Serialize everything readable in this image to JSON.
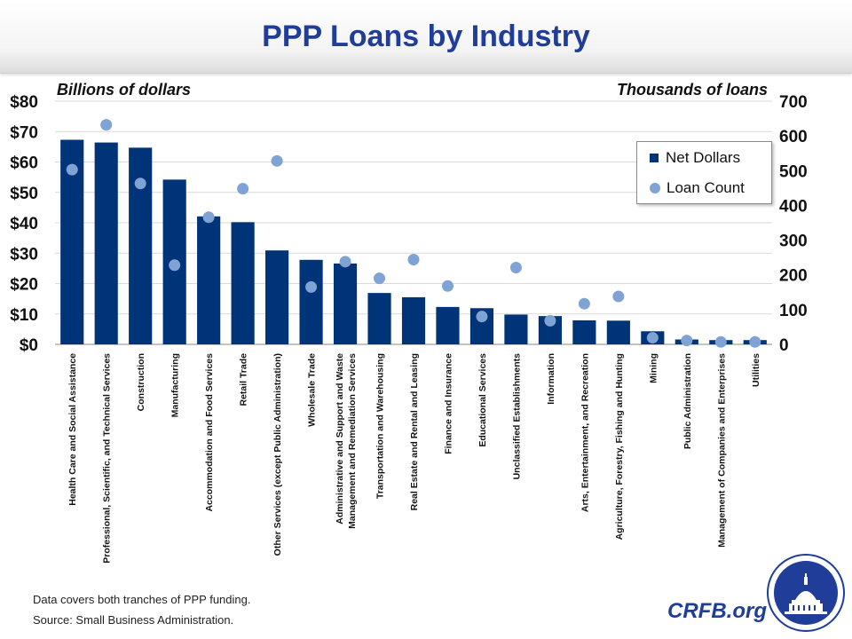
{
  "header": {
    "title": "PPP Loans by Industry"
  },
  "axes": {
    "left_title": "Billions of dollars",
    "right_title": "Thousands of loans"
  },
  "legend": {
    "bar_label": "Net Dollars",
    "dot_label": "Loan Count"
  },
  "footer": {
    "note": "Data covers both tranches of PPP funding.",
    "source": "Source: Small Business Administration.",
    "brand": "CRFB.org"
  },
  "colors": {
    "bar": "#003478",
    "dot": "#7fa3d4",
    "title": "#1f3d99"
  },
  "chart_data": {
    "type": "bar",
    "title": "PPP Loans by Industry",
    "ylabel": "Billions of dollars",
    "y2label": "Thousands of loans",
    "ylim": [
      0,
      80
    ],
    "y2lim": [
      0,
      700
    ],
    "yticks": [
      "$0",
      "$10",
      "$20",
      "$30",
      "$40",
      "$50",
      "$60",
      "$70",
      "$80"
    ],
    "y2ticks": [
      "0",
      "100",
      "200",
      "300",
      "400",
      "500",
      "600",
      "700"
    ],
    "grid": true,
    "legend_position": "top-right",
    "categories": [
      [
        "Health Care and Social Assistance"
      ],
      [
        "Professional, Scientific, and Technical Services"
      ],
      [
        "Construction"
      ],
      [
        "Manufacturing"
      ],
      [
        "Accommodation and Food Services"
      ],
      [
        "Retail Trade"
      ],
      [
        "Other Services (except Public Administration)"
      ],
      [
        "Wholesale Trade"
      ],
      [
        "Administrative and Support and Waste",
        "Management and Remediation Services"
      ],
      [
        "Transportation and Warehousing"
      ],
      [
        "Real Estate and Rental and Leasing"
      ],
      [
        "Finance and Insurance"
      ],
      [
        "Educational Services"
      ],
      [
        "Unclassified Establishments"
      ],
      [
        "Information"
      ],
      [
        "Arts, Entertainment, and Recreation"
      ],
      [
        "Agriculture, Forestry, Fishing and Hunting"
      ],
      [
        "Mining"
      ],
      [
        "Public Administration"
      ],
      [
        "Management of Companies and Enterprises"
      ],
      [
        "Utilities"
      ]
    ],
    "series": [
      {
        "name": "Net Dollars",
        "type": "bar",
        "axis": "left",
        "values": [
          67.3,
          66.4,
          64.7,
          54.2,
          42.1,
          40.2,
          30.9,
          27.8,
          26.6,
          16.9,
          15.5,
          12.3,
          11.9,
          9.8,
          9.3,
          7.9,
          7.8,
          4.3,
          1.6,
          1.4,
          1.4
        ]
      },
      {
        "name": "Loan Count",
        "type": "scatter",
        "axis": "right",
        "values": [
          503,
          632,
          463,
          228,
          366,
          448,
          528,
          165,
          238,
          190,
          244,
          168,
          80,
          221,
          68,
          117,
          138,
          19,
          11,
          7,
          7
        ]
      }
    ]
  }
}
